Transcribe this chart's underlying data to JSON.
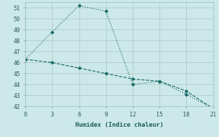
{
  "xlabel": "Humidex (Indice chaleur)",
  "xlim": [
    0,
    21
  ],
  "ylim": [
    42,
    51.5
  ],
  "yticks": [
    42,
    43,
    44,
    45,
    46,
    47,
    48,
    49,
    50,
    51
  ],
  "xticks": [
    0,
    3,
    6,
    9,
    12,
    15,
    18,
    21
  ],
  "background_color": "#cce8e8",
  "grid_color": "#b0c8c8",
  "line_color": "#1a6b6b",
  "line1_x": [
    0,
    3,
    6,
    9,
    12,
    15,
    18,
    21
  ],
  "line1_y": [
    46.3,
    48.8,
    51.2,
    50.7,
    44.0,
    44.3,
    43.1,
    41.8
  ],
  "line2_x": [
    0,
    3,
    6,
    9,
    12,
    15,
    18,
    21
  ],
  "line2_y": [
    46.3,
    46.0,
    45.5,
    45.0,
    44.5,
    44.3,
    43.4,
    41.8
  ],
  "markersize": 2.5,
  "linewidth": 0.9
}
